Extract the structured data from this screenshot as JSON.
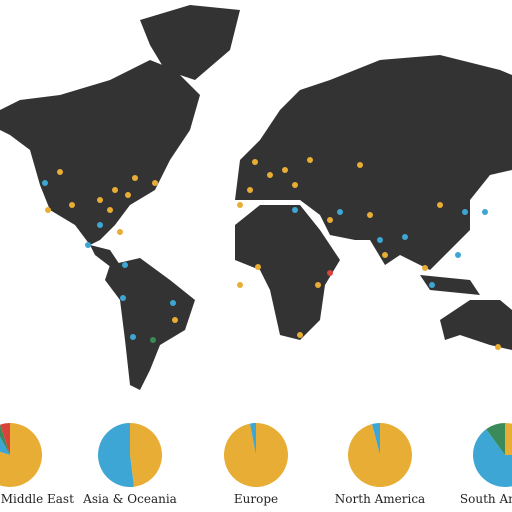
{
  "colors": [
    "#e8ad35",
    "#3ea6d4",
    "#3a8a5a",
    "#d9433a"
  ],
  "pies": [
    {
      "label": "Africa & Middle East",
      "values": [
        80,
        12,
        3,
        5
      ]
    },
    {
      "label": "Asia & Oceania",
      "values": [
        48,
        52,
        0,
        0
      ]
    },
    {
      "label": "Europe",
      "values": [
        97,
        3,
        0,
        0
      ]
    },
    {
      "label": "North America",
      "values": [
        96,
        4,
        0,
        0
      ]
    },
    {
      "label": "South America",
      "values": [
        25,
        65,
        10,
        0
      ]
    }
  ]
}
